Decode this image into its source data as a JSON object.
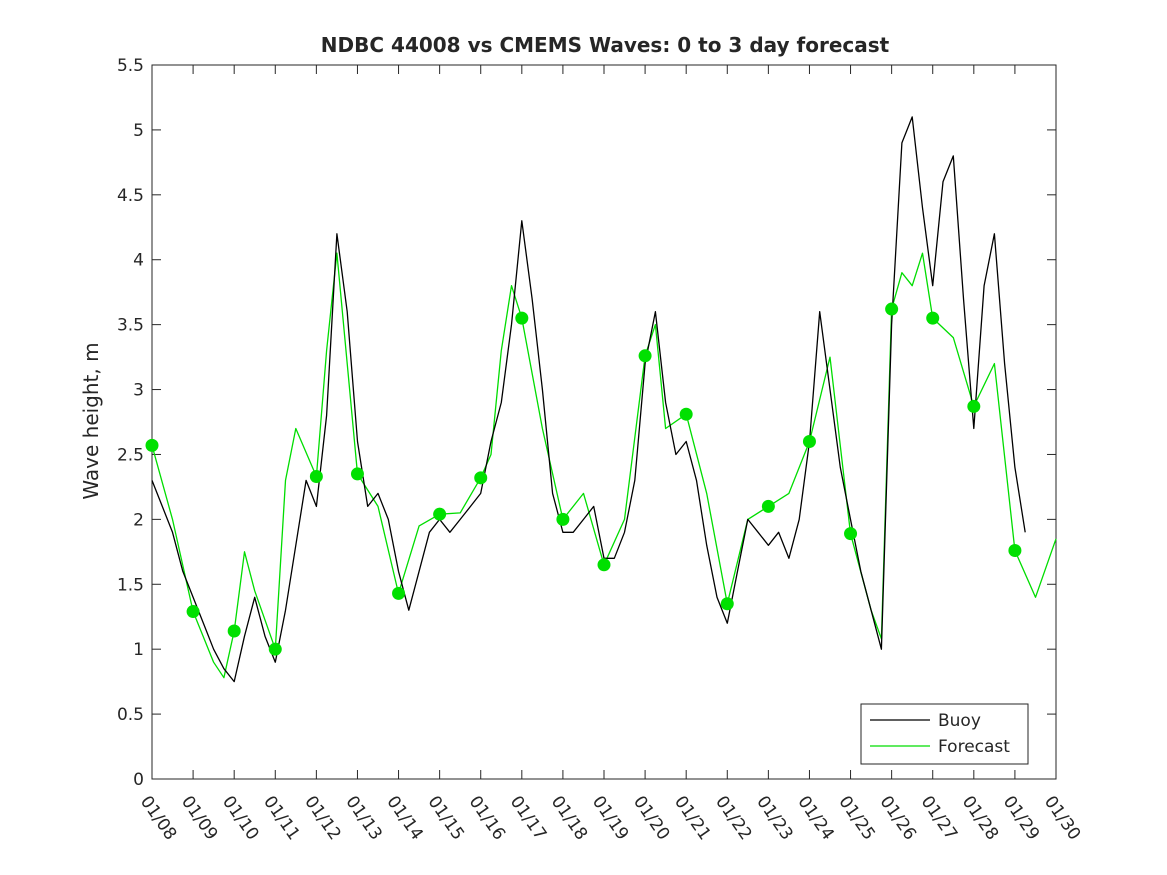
{
  "chart_data": {
    "type": "line",
    "title": "NDBC 44008 vs CMEMS Waves: 0 to 3 day forecast",
    "xlabel": "",
    "ylabel": "Wave height, m",
    "xlim": [
      "01/08",
      "01/30"
    ],
    "ylim": [
      0,
      5.5
    ],
    "x_ticks": [
      "01/08",
      "01/09",
      "01/10",
      "01/11",
      "01/12",
      "01/13",
      "01/14",
      "01/15",
      "01/16",
      "01/17",
      "01/18",
      "01/19",
      "01/20",
      "01/21",
      "01/22",
      "01/23",
      "01/24",
      "01/25",
      "01/26",
      "01/27",
      "01/28",
      "01/29",
      "01/30"
    ],
    "y_ticks": [
      "0",
      "0.5",
      "1",
      "1.5",
      "2",
      "2.5",
      "3",
      "3.5",
      "4",
      "4.5",
      "5",
      "5.5"
    ],
    "grid": false,
    "legend_position": "bottom-right",
    "legend": [
      "Buoy",
      "Forecast"
    ],
    "series": [
      {
        "name": "Buoy",
        "color": "#000000",
        "x_day_of_january": [
          8.0,
          8.25,
          8.5,
          8.75,
          9.0,
          9.25,
          9.5,
          9.75,
          10.0,
          10.25,
          10.5,
          10.75,
          11.0,
          11.25,
          11.5,
          11.75,
          12.0,
          12.25,
          12.5,
          12.75,
          13.0,
          13.25,
          13.5,
          13.75,
          14.0,
          14.25,
          14.5,
          14.75,
          15.0,
          15.25,
          15.5,
          15.75,
          16.0,
          16.25,
          16.5,
          16.75,
          17.0,
          17.25,
          17.5,
          17.75,
          18.0,
          18.25,
          18.5,
          18.75,
          19.0,
          19.25,
          19.5,
          19.75,
          20.0,
          20.25,
          20.5,
          20.75,
          21.0,
          21.25,
          21.5,
          21.75,
          22.0,
          22.25,
          22.5,
          22.75,
          23.0,
          23.25,
          23.5,
          23.75,
          24.0,
          24.25,
          24.5,
          24.75,
          25.0,
          25.25,
          25.5,
          25.75,
          26.0,
          26.25,
          26.5,
          26.75,
          27.0,
          27.25,
          27.5,
          27.75,
          28.0,
          28.25,
          28.5,
          28.75,
          29.0,
          29.25
        ],
        "values": [
          2.3,
          2.1,
          1.9,
          1.6,
          1.4,
          1.2,
          1.0,
          0.85,
          0.75,
          1.1,
          1.4,
          1.1,
          0.9,
          1.3,
          1.8,
          2.3,
          2.1,
          2.8,
          4.2,
          3.6,
          2.6,
          2.1,
          2.2,
          2.0,
          1.6,
          1.3,
          1.6,
          1.9,
          2.0,
          1.9,
          2.0,
          2.1,
          2.2,
          2.6,
          2.9,
          3.5,
          4.3,
          3.7,
          3.0,
          2.2,
          1.9,
          1.9,
          2.0,
          2.1,
          1.7,
          1.7,
          1.9,
          2.3,
          3.2,
          3.6,
          2.9,
          2.5,
          2.6,
          2.3,
          1.8,
          1.4,
          1.2,
          1.6,
          2.0,
          1.9,
          1.8,
          1.9,
          1.7,
          2.0,
          2.6,
          3.6,
          3.0,
          2.4,
          2.0,
          1.6,
          1.3,
          1.0,
          3.5,
          4.9,
          5.1,
          4.4,
          3.8,
          4.6,
          4.8,
          3.7,
          2.7,
          3.8,
          4.2,
          3.2,
          2.4,
          1.9
        ]
      },
      {
        "name": "Forecast",
        "color": "#00dd00",
        "x_day_of_january": [
          8.0,
          8.5,
          9.0,
          9.5,
          9.75,
          10.0,
          10.25,
          10.5,
          11.0,
          11.25,
          11.5,
          12.0,
          12.25,
          12.5,
          13.0,
          13.5,
          14.0,
          14.5,
          15.0,
          15.5,
          16.0,
          16.25,
          16.5,
          16.75,
          17.0,
          17.5,
          18.0,
          18.5,
          19.0,
          19.5,
          20.0,
          20.25,
          20.5,
          21.0,
          21.5,
          22.0,
          22.5,
          23.0,
          23.5,
          24.0,
          24.5,
          25.0,
          25.5,
          25.75,
          26.0,
          26.25,
          26.5,
          26.75,
          27.0,
          27.5,
          28.0,
          28.5,
          29.0,
          29.5,
          30.0
        ],
        "values": [
          2.57,
          2.0,
          1.29,
          0.9,
          0.78,
          1.14,
          1.75,
          1.45,
          1.0,
          2.3,
          2.7,
          2.33,
          3.3,
          4.05,
          2.35,
          2.1,
          1.43,
          1.95,
          2.04,
          2.05,
          2.32,
          2.5,
          3.3,
          3.8,
          3.55,
          2.7,
          2.0,
          2.2,
          1.65,
          2.0,
          3.26,
          3.5,
          2.7,
          2.81,
          2.2,
          1.35,
          2.0,
          2.1,
          2.2,
          2.6,
          3.25,
          1.89,
          1.3,
          1.08,
          3.62,
          3.9,
          3.8,
          4.05,
          3.55,
          3.4,
          2.87,
          3.2,
          1.76,
          1.4,
          1.85
        ]
      }
    ],
    "forecast_markers": [
      {
        "x": "01/08",
        "y": 2.57
      },
      {
        "x": "01/09",
        "y": 1.29
      },
      {
        "x": "01/10",
        "y": 1.14
      },
      {
        "x": "01/11",
        "y": 1.0
      },
      {
        "x": "01/12",
        "y": 2.33
      },
      {
        "x": "01/13",
        "y": 2.35
      },
      {
        "x": "01/14",
        "y": 1.43
      },
      {
        "x": "01/15",
        "y": 2.04
      },
      {
        "x": "01/16",
        "y": 2.32
      },
      {
        "x": "01/17",
        "y": 3.55
      },
      {
        "x": "01/18",
        "y": 2.0
      },
      {
        "x": "01/19",
        "y": 1.65
      },
      {
        "x": "01/20",
        "y": 3.26
      },
      {
        "x": "01/21",
        "y": 2.81
      },
      {
        "x": "01/22",
        "y": 1.35
      },
      {
        "x": "01/23",
        "y": 2.1
      },
      {
        "x": "01/24",
        "y": 2.6
      },
      {
        "x": "01/25",
        "y": 1.89
      },
      {
        "x": "01/26",
        "y": 3.62
      },
      {
        "x": "01/27",
        "y": 3.55
      },
      {
        "x": "01/28",
        "y": 2.87
      },
      {
        "x": "01/29",
        "y": 1.76
      }
    ]
  }
}
